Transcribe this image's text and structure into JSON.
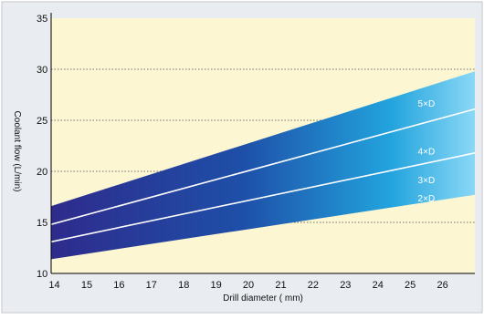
{
  "chart_data": {
    "type": "area",
    "title": "",
    "xlabel": "Drill diameter ( mm)",
    "ylabel": "Coolant flow (L/min)",
    "xlim": [
      13.9,
      27
    ],
    "ylim": [
      10,
      35
    ],
    "x_ticks": [
      "14",
      "15",
      "16",
      "17",
      "18",
      "19",
      "20",
      "21",
      "22",
      "23",
      "24",
      "25",
      "26"
    ],
    "x_tick_values": [
      14,
      15,
      16,
      17,
      18,
      19,
      20,
      21,
      22,
      23,
      24,
      25,
      26
    ],
    "y_ticks": [
      "10",
      "15",
      "20",
      "25",
      "30",
      "35"
    ],
    "y_tick_values": [
      10,
      15,
      20,
      25,
      30,
      35
    ],
    "grid": {
      "horizontal": [
        15,
        20,
        25,
        30
      ],
      "style": "dotted"
    },
    "band": {
      "x": [
        13.9,
        27
      ],
      "lower": [
        11.4,
        17.7
      ],
      "upper": [
        16.6,
        29.8
      ]
    },
    "series": [
      {
        "name": "5×D",
        "x": [
          13.9,
          27
        ],
        "values": [
          16.6,
          29.8
        ],
        "label_at": [
          25.5,
          26.7
        ]
      },
      {
        "name": "4×D",
        "x": [
          13.9,
          27
        ],
        "values": [
          14.8,
          26.1
        ],
        "label_at": [
          25.5,
          22.0
        ]
      },
      {
        "name": "3×D",
        "x": [
          13.9,
          27
        ],
        "values": [
          13.1,
          21.8
        ],
        "label_at": [
          25.5,
          19.2
        ]
      },
      {
        "name": "2×D",
        "x": [
          13.9,
          27
        ],
        "values": [
          11.4,
          17.7
        ],
        "label_at": [
          25.5,
          17.4
        ]
      }
    ],
    "colors": {
      "plot_background": "#fdf6d3",
      "frame_background": "#e9ecf0",
      "band_start": "#2e2b8c",
      "band_mid": "#1e4fa8",
      "band_cyan": "#22a3dd",
      "band_end": "#8ad8f6",
      "series_line": "#ffffff",
      "label_text": "#ffffff"
    }
  }
}
